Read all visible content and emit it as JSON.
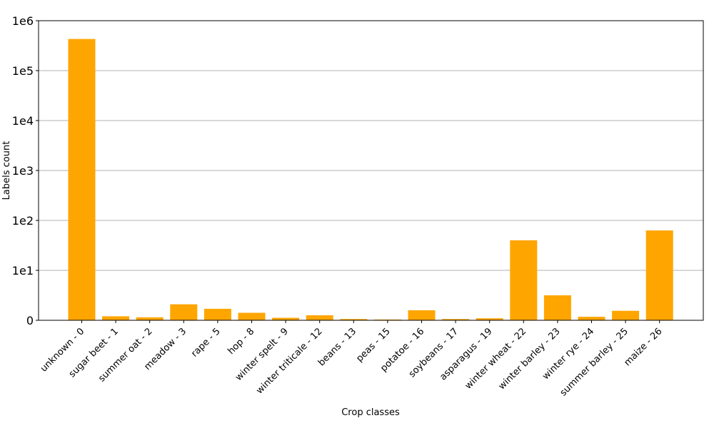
{
  "chart_data": {
    "type": "bar",
    "scale": "symlog",
    "xlabel": "Crop classes",
    "ylabel": "Labels count",
    "bar_color": "#FFA500",
    "grid": "horizontal",
    "categories": [
      "unknown - 0",
      "sugar beet - 1",
      "summer oat - 2",
      "meadow - 3",
      "rape - 5",
      "hop - 8",
      "winter spelt - 9",
      "winter triticale - 12",
      "beans - 13",
      "peas - 15",
      "potatoe - 16",
      "soybeans - 17",
      "asparagus - 19",
      "winter wheat - 22",
      "winter barley - 23",
      "winter rye - 24",
      "summer barley - 25",
      "maize - 26"
    ],
    "values": [
      430000,
      0.8,
      0.6,
      3.2,
      2.3,
      1.5,
      0.5,
      1.0,
      0.25,
      0.15,
      2.0,
      0.25,
      0.4,
      40,
      5,
      0.7,
      1.9,
      63
    ],
    "yticks": [
      {
        "value": 0,
        "label": "0"
      },
      {
        "value": 10,
        "label": "1e1"
      },
      {
        "value": 100,
        "label": "1e2"
      },
      {
        "value": 1000,
        "label": "1e3"
      },
      {
        "value": 10000,
        "label": "1e4"
      },
      {
        "value": 100000,
        "label": "1e5"
      },
      {
        "value": 1000000,
        "label": "1e6"
      }
    ]
  }
}
